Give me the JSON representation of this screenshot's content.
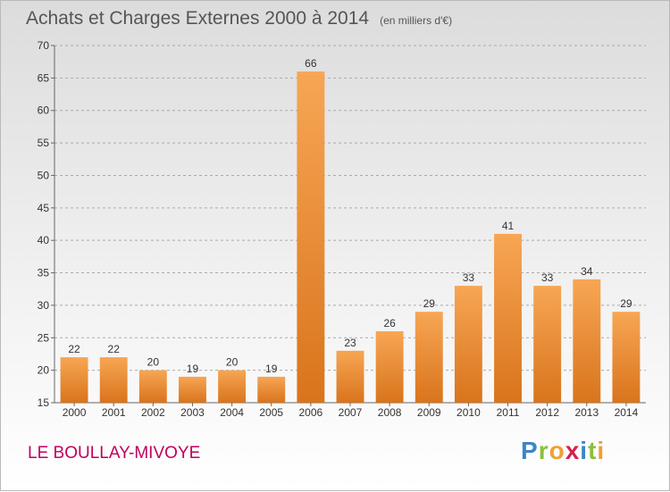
{
  "header": {
    "title": "Achats et Charges Externes 2000 à 2014",
    "subtitle": "(en milliers d'€)"
  },
  "footer": {
    "place": "LE BOULLAY-MIVOYE",
    "logo": "Proxiti"
  },
  "colors": {
    "bar_top": "#f7a654",
    "bar_bottom": "#d9741c",
    "grid": "#aaaaaa"
  },
  "chart_data": {
    "type": "bar",
    "title": "Achats et Charges Externes 2000 à 2014",
    "subtitle": "(en milliers d'€)",
    "categories": [
      "2000",
      "2001",
      "2002",
      "2003",
      "2004",
      "2005",
      "2006",
      "2007",
      "2008",
      "2009",
      "2010",
      "2011",
      "2012",
      "2013",
      "2014"
    ],
    "values": [
      22,
      22,
      20,
      19,
      20,
      19,
      66,
      23,
      26,
      29,
      33,
      41,
      33,
      34,
      29
    ],
    "ylim": [
      15,
      70
    ],
    "yticks": [
      15,
      20,
      25,
      30,
      35,
      40,
      45,
      50,
      55,
      60,
      65,
      70
    ],
    "grid": "horizontal dashed",
    "data_labels": true
  }
}
